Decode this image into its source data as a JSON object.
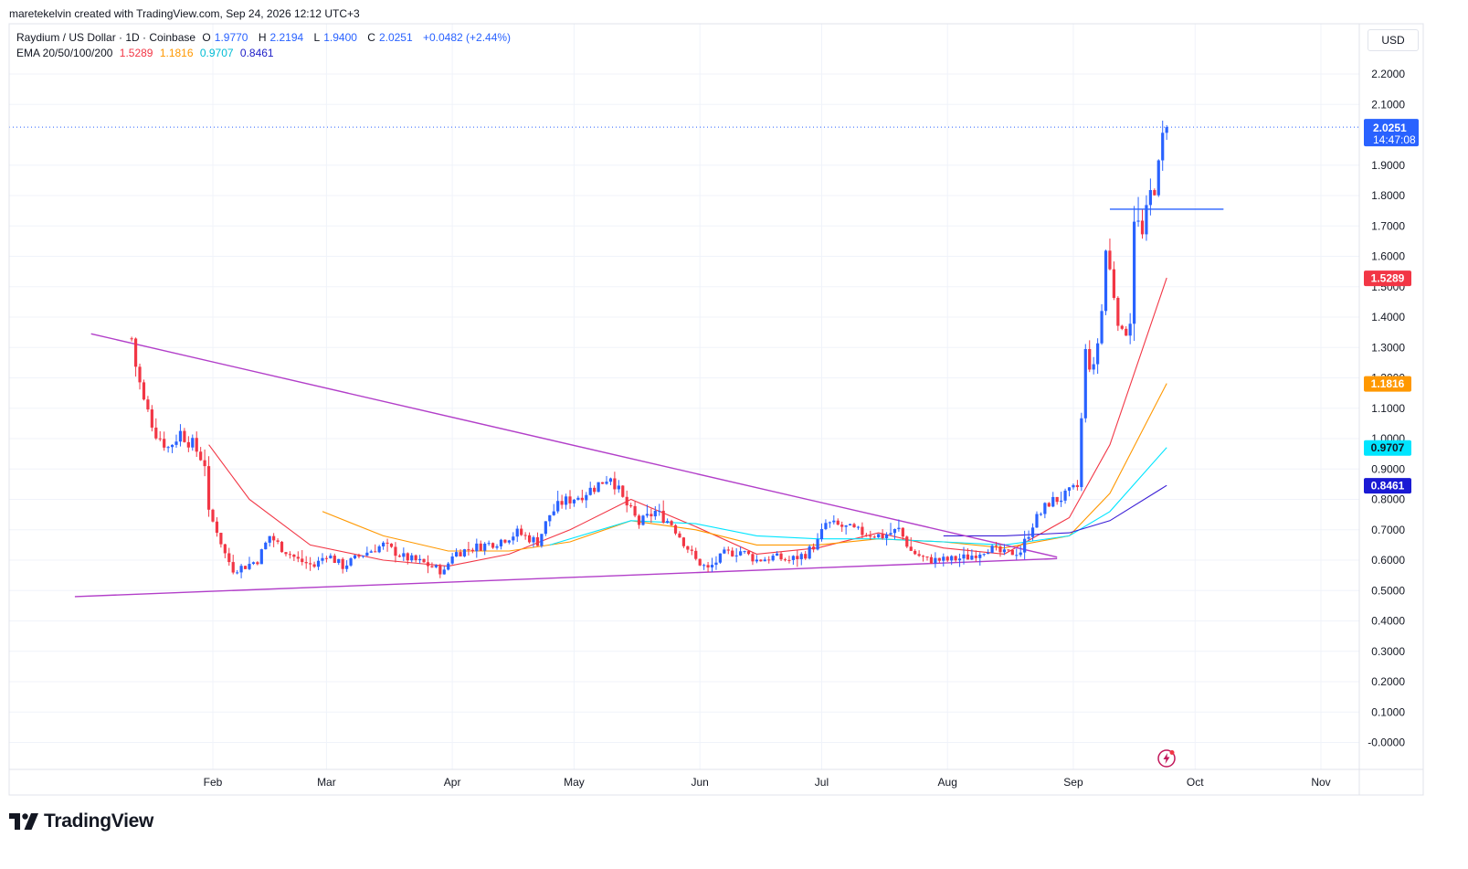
{
  "attribution": "maretekelvin created with TradingView.com, Sep 24, 2026 12:12 UTC+3",
  "legend": {
    "symbol": "Raydium / US Dollar · 1D · Coinbase",
    "o_label": "O",
    "o": "1.9770",
    "h_label": "H",
    "h": "2.2194",
    "l_label": "L",
    "l": "1.9400",
    "c_label": "C",
    "c": "2.0251",
    "change": "+0.0482 (+2.44%)",
    "ema_label": "EMA 20/50/100/200",
    "ema20": "1.5289",
    "ema50": "1.1816",
    "ema100": "0.9707",
    "ema200": "0.8461"
  },
  "currency_button": "USD",
  "logo_text": "TradingView",
  "colors": {
    "up": "#2962ff",
    "down": "#f23645",
    "ema20": "#f23645",
    "ema50": "#ff9800",
    "ema100": "#00e5ff",
    "ema200": "#3b1fd6",
    "trendline": "#b23fc9",
    "grid": "#f0f3fa",
    "price_line": "#2962ff"
  },
  "chart_data": {
    "type": "candlestick",
    "title": "Raydium / US Dollar · 1D · Coinbase",
    "ylim": [
      -0.05,
      2.3
    ],
    "y_ticks": [
      "2.2000",
      "2.1000",
      "1.9000",
      "1.8000",
      "1.7000",
      "1.6000",
      "1.5000",
      "1.4000",
      "1.3000",
      "1.2000",
      "1.1000",
      "1.0000",
      "0.9000",
      "0.8000",
      "0.7000",
      "0.6000",
      "0.5000",
      "0.4000",
      "0.3000",
      "0.2000",
      "0.1000",
      "-0.0000"
    ],
    "x_ticks": [
      "Feb",
      "Mar",
      "Apr",
      "May",
      "Jun",
      "Jul",
      "Aug",
      "Sep",
      "Oct",
      "Nov"
    ],
    "x_tick_dates": [
      "2026-02-01",
      "2026-03-01",
      "2026-04-01",
      "2026-05-01",
      "2026-06-01",
      "2026-07-01",
      "2026-08-01",
      "2026-09-01",
      "2026-10-01",
      "2026-11-01"
    ],
    "last_price": {
      "value": 2.0251,
      "label": "2.0251",
      "countdown": "14:47:08"
    },
    "ema_labels": [
      {
        "name": "EMA 20",
        "value": 1.5289,
        "label": "1.5289"
      },
      {
        "name": "EMA 50",
        "value": 1.1816,
        "label": "1.1816"
      },
      {
        "name": "EMA 100",
        "value": 0.9707,
        "label": "0.9707"
      },
      {
        "name": "EMA 200",
        "value": 0.8461,
        "label": "0.8461"
      }
    ],
    "price_path": [
      [
        "2026-01-12",
        1.33
      ],
      [
        "2026-01-13",
        1.24
      ],
      [
        "2026-01-15",
        1.12
      ],
      [
        "2026-01-18",
        1.02
      ],
      [
        "2026-01-21",
        0.97
      ],
      [
        "2026-01-24",
        1.02
      ],
      [
        "2026-01-27",
        0.98
      ],
      [
        "2026-01-30",
        0.92
      ],
      [
        "2026-01-31",
        0.75
      ],
      [
        "2026-02-02",
        0.7
      ],
      [
        "2026-02-04",
        0.62
      ],
      [
        "2026-02-06",
        0.57
      ],
      [
        "2026-02-09",
        0.58
      ],
      [
        "2026-02-12",
        0.6
      ],
      [
        "2026-02-15",
        0.68
      ],
      [
        "2026-02-18",
        0.64
      ],
      [
        "2026-02-22",
        0.6
      ],
      [
        "2026-02-26",
        0.58
      ],
      [
        "2026-03-01",
        0.62
      ],
      [
        "2026-03-05",
        0.58
      ],
      [
        "2026-03-10",
        0.62
      ],
      [
        "2026-03-15",
        0.65
      ],
      [
        "2026-03-20",
        0.61
      ],
      [
        "2026-03-25",
        0.59
      ],
      [
        "2026-03-30",
        0.56
      ],
      [
        "2026-04-01",
        0.62
      ],
      [
        "2026-04-06",
        0.64
      ],
      [
        "2026-04-12",
        0.66
      ],
      [
        "2026-04-17",
        0.69
      ],
      [
        "2026-04-22",
        0.66
      ],
      [
        "2026-04-25",
        0.75
      ],
      [
        "2026-04-28",
        0.79
      ],
      [
        "2026-05-02",
        0.81
      ],
      [
        "2026-05-06",
        0.84
      ],
      [
        "2026-05-10",
        0.88
      ],
      [
        "2026-05-13",
        0.8
      ],
      [
        "2026-05-17",
        0.72
      ],
      [
        "2026-05-21",
        0.76
      ],
      [
        "2026-05-25",
        0.72
      ],
      [
        "2026-05-28",
        0.66
      ],
      [
        "2026-05-31",
        0.6
      ],
      [
        "2026-06-03",
        0.57
      ],
      [
        "2026-06-07",
        0.62
      ],
      [
        "2026-06-11",
        0.63
      ],
      [
        "2026-06-15",
        0.6
      ],
      [
        "2026-06-19",
        0.61
      ],
      [
        "2026-06-23",
        0.6
      ],
      [
        "2026-06-27",
        0.62
      ],
      [
        "2026-06-30",
        0.66
      ],
      [
        "2026-07-02",
        0.72
      ],
      [
        "2026-07-06",
        0.71
      ],
      [
        "2026-07-11",
        0.69
      ],
      [
        "2026-07-16",
        0.68
      ],
      [
        "2026-07-20",
        0.7
      ],
      [
        "2026-07-23",
        0.63
      ],
      [
        "2026-07-27",
        0.6
      ],
      [
        "2026-08-01",
        0.6
      ],
      [
        "2026-08-06",
        0.61
      ],
      [
        "2026-08-11",
        0.64
      ],
      [
        "2026-08-15",
        0.62
      ],
      [
        "2026-08-19",
        0.63
      ],
      [
        "2026-08-22",
        0.72
      ],
      [
        "2026-08-26",
        0.79
      ],
      [
        "2026-08-30",
        0.81
      ],
      [
        "2026-09-02",
        0.84
      ],
      [
        "2026-09-04",
        1.28
      ],
      [
        "2026-09-06",
        1.22
      ],
      [
        "2026-09-08",
        1.42
      ],
      [
        "2026-09-09",
        1.62
      ],
      [
        "2026-09-11",
        1.48
      ],
      [
        "2026-09-13",
        1.33
      ],
      [
        "2026-09-15",
        1.4
      ],
      [
        "2026-09-16",
        1.74
      ],
      [
        "2026-09-18",
        1.66
      ],
      [
        "2026-09-20",
        1.8
      ],
      [
        "2026-09-22",
        1.88
      ],
      [
        "2026-09-23",
        1.98
      ],
      [
        "2026-09-24",
        2.0251
      ]
    ],
    "ema_series": {
      "ema20": [
        [
          "2026-01-31",
          0.98
        ],
        [
          "2026-02-10",
          0.8
        ],
        [
          "2026-02-25",
          0.65
        ],
        [
          "2026-03-15",
          0.6
        ],
        [
          "2026-03-31",
          0.58
        ],
        [
          "2026-04-15",
          0.62
        ],
        [
          "2026-04-30",
          0.7
        ],
        [
          "2026-05-15",
          0.8
        ],
        [
          "2026-05-31",
          0.71
        ],
        [
          "2026-06-15",
          0.62
        ],
        [
          "2026-06-30",
          0.64
        ],
        [
          "2026-07-15",
          0.69
        ],
        [
          "2026-07-31",
          0.64
        ],
        [
          "2026-08-15",
          0.62
        ],
        [
          "2026-08-31",
          0.74
        ],
        [
          "2026-09-10",
          0.98
        ],
        [
          "2026-09-24",
          1.5289
        ]
      ],
      "ema50": [
        [
          "2026-02-28",
          0.76
        ],
        [
          "2026-03-15",
          0.68
        ],
        [
          "2026-03-31",
          0.63
        ],
        [
          "2026-04-15",
          0.63
        ],
        [
          "2026-04-30",
          0.66
        ],
        [
          "2026-05-15",
          0.73
        ],
        [
          "2026-05-31",
          0.7
        ],
        [
          "2026-06-15",
          0.65
        ],
        [
          "2026-06-30",
          0.65
        ],
        [
          "2026-07-15",
          0.67
        ],
        [
          "2026-07-31",
          0.66
        ],
        [
          "2026-08-15",
          0.64
        ],
        [
          "2026-08-31",
          0.68
        ],
        [
          "2026-09-10",
          0.82
        ],
        [
          "2026-09-24",
          1.1816
        ]
      ],
      "ema100": [
        [
          "2026-04-25",
          0.65
        ],
        [
          "2026-05-15",
          0.73
        ],
        [
          "2026-05-31",
          0.72
        ],
        [
          "2026-06-15",
          0.68
        ],
        [
          "2026-06-30",
          0.67
        ],
        [
          "2026-07-15",
          0.67
        ],
        [
          "2026-07-31",
          0.66
        ],
        [
          "2026-08-15",
          0.65
        ],
        [
          "2026-08-31",
          0.68
        ],
        [
          "2026-09-10",
          0.76
        ],
        [
          "2026-09-24",
          0.9707
        ]
      ],
      "ema200": [
        [
          "2026-07-31",
          0.68
        ],
        [
          "2026-08-15",
          0.68
        ],
        [
          "2026-08-31",
          0.69
        ],
        [
          "2026-09-10",
          0.73
        ],
        [
          "2026-09-24",
          0.8461
        ]
      ]
    },
    "drawings": [
      {
        "name": "upper-trendline",
        "from": [
          "2026-01-02",
          1.345
        ],
        "to": [
          "2026-08-28",
          0.61
        ]
      },
      {
        "name": "lower-trendline",
        "from": [
          "2025-12-29",
          0.48
        ],
        "to": [
          "2026-08-28",
          0.605
        ]
      },
      {
        "name": "breakout-level",
        "from": [
          "2026-09-10",
          1.755
        ],
        "to": [
          "2026-10-08",
          1.755
        ]
      }
    ]
  }
}
